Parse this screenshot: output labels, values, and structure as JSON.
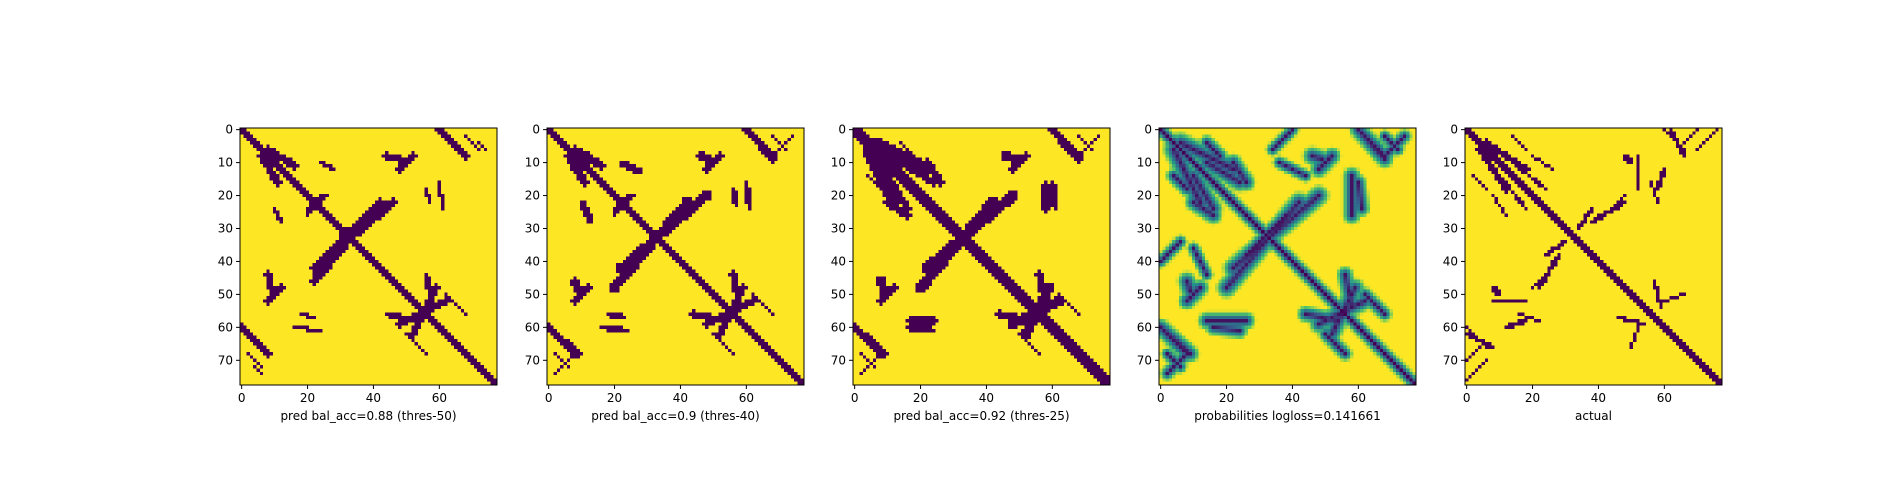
{
  "chart_data": [
    {
      "type": "heatmap",
      "name": "pred-50",
      "mode": "binary",
      "xlabel": "pred bal_acc=0.88 (thres-50)",
      "matrix_size": 78,
      "xticks": [
        0,
        20,
        40,
        60
      ],
      "yticks": [
        0,
        10,
        20,
        30,
        40,
        50,
        60,
        70
      ],
      "diagonal_halfwidth": 1.6,
      "arcs": [
        {
          "x0": 22,
          "y0": 42,
          "x1": 46,
          "y1": 22,
          "w": 1.3
        },
        {
          "x0": 8,
          "y0": 6,
          "x1": 16,
          "y1": 11,
          "w": 1.2
        },
        {
          "x0": 59,
          "y0": 48,
          "x1": 52,
          "y1": 62,
          "w": 1.1
        },
        {
          "x0": 60,
          "y0": 0,
          "x1": 68,
          "y1": 8,
          "w": 1.0
        },
        {
          "x0": 0,
          "y0": 60,
          "x1": 8,
          "y1": 68,
          "w": 0.9
        },
        {
          "x0": 68,
          "y0": 2,
          "x1": 72,
          "y1": 6,
          "w": 0.4
        },
        {
          "x0": 26,
          "y0": 38,
          "x1": 32,
          "y1": 30,
          "w": 0.5
        },
        {
          "x0": 20,
          "y0": 24,
          "x1": 26,
          "y1": 20,
          "w": 0.7
        },
        {
          "x0": 8,
          "y0": 52,
          "x1": 12,
          "y1": 48,
          "w": 1.0
        },
        {
          "x0": 24,
          "y0": 10,
          "x1": 28,
          "y1": 12,
          "w": 0.8
        },
        {
          "x0": 44,
          "y0": 8,
          "x1": 48,
          "y1": 9,
          "w": 1.2
        },
        {
          "x0": 56,
          "y0": 18,
          "x1": 57,
          "y1": 22,
          "w": 0.7
        },
        {
          "x0": 16,
          "y0": 60,
          "x1": 24,
          "y1": 61,
          "w": 0.6
        },
        {
          "x0": 44,
          "y0": 56,
          "x1": 54,
          "y1": 58,
          "w": 0.9
        },
        {
          "x0": 4,
          "y0": 72,
          "x1": 6,
          "y1": 74,
          "w": 0.4
        },
        {
          "x0": 62,
          "y0": 50,
          "x1": 68,
          "y1": 56,
          "w": 0.5
        }
      ]
    },
    {
      "type": "heatmap",
      "name": "pred-40",
      "mode": "binary",
      "xlabel": "pred bal_acc=0.9 (thres-40)",
      "matrix_size": 78,
      "xticks": [
        0,
        20,
        40,
        60
      ],
      "yticks": [
        0,
        10,
        20,
        30,
        40,
        50,
        60,
        70
      ],
      "diagonal_halfwidth": 1.8,
      "arcs": [
        {
          "x0": 22,
          "y0": 42,
          "x1": 48,
          "y1": 20,
          "w": 1.5
        },
        {
          "x0": 8,
          "y0": 6,
          "x1": 16,
          "y1": 11,
          "w": 1.3
        },
        {
          "x0": 59,
          "y0": 48,
          "x1": 52,
          "y1": 62,
          "w": 1.3
        },
        {
          "x0": 60,
          "y0": 0,
          "x1": 68,
          "y1": 8,
          "w": 1.2
        },
        {
          "x0": 0,
          "y0": 60,
          "x1": 9,
          "y1": 68,
          "w": 1.0
        },
        {
          "x0": 2,
          "y0": 74,
          "x1": 8,
          "y1": 68,
          "w": 0.5
        },
        {
          "x0": 26,
          "y0": 38,
          "x1": 34,
          "y1": 30,
          "w": 0.6
        },
        {
          "x0": 20,
          "y0": 24,
          "x1": 26,
          "y1": 20,
          "w": 0.8
        },
        {
          "x0": 8,
          "y0": 52,
          "x1": 12,
          "y1": 48,
          "w": 1.1
        },
        {
          "x0": 22,
          "y0": 10,
          "x1": 28,
          "y1": 13,
          "w": 0.9
        },
        {
          "x0": 46,
          "y0": 8,
          "x1": 49,
          "y1": 9,
          "w": 1.4
        },
        {
          "x0": 56,
          "y0": 18,
          "x1": 57,
          "y1": 23,
          "w": 0.9
        },
        {
          "x0": 16,
          "y0": 60,
          "x1": 24,
          "y1": 61,
          "w": 0.8
        },
        {
          "x0": 44,
          "y0": 56,
          "x1": 54,
          "y1": 58,
          "w": 1.0
        },
        {
          "x0": 62,
          "y0": 50,
          "x1": 68,
          "y1": 56,
          "w": 0.6
        },
        {
          "x0": 68,
          "y0": 2,
          "x1": 72,
          "y1": 6,
          "w": 0.4
        }
      ]
    },
    {
      "type": "heatmap",
      "name": "pred-25",
      "mode": "binary",
      "xlabel": "pred bal_acc=0.92 (thres-25)",
      "matrix_size": 78,
      "xticks": [
        0,
        20,
        40,
        60
      ],
      "yticks": [
        0,
        10,
        20,
        30,
        40,
        50,
        60,
        70
      ],
      "diagonal_halfwidth": 2.0,
      "arcs": [
        {
          "x0": 22,
          "y0": 42,
          "x1": 48,
          "y1": 20,
          "w": 1.7
        },
        {
          "x0": 6,
          "y0": 4,
          "x1": 22,
          "y1": 12,
          "w": 1.8
        },
        {
          "x0": 14,
          "y0": 10,
          "x1": 24,
          "y1": 16,
          "w": 1.2
        },
        {
          "x0": 59,
          "y0": 48,
          "x1": 52,
          "y1": 62,
          "w": 1.5
        },
        {
          "x0": 60,
          "y0": 0,
          "x1": 68,
          "y1": 8,
          "w": 1.3
        },
        {
          "x0": 0,
          "y0": 60,
          "x1": 9,
          "y1": 68,
          "w": 1.2
        },
        {
          "x0": 2,
          "y0": 74,
          "x1": 8,
          "y1": 68,
          "w": 0.6
        },
        {
          "x0": 26,
          "y0": 38,
          "x1": 34,
          "y1": 30,
          "w": 0.7
        },
        {
          "x0": 10,
          "y0": 22,
          "x1": 16,
          "y1": 26,
          "w": 1.2
        },
        {
          "x0": 8,
          "y0": 52,
          "x1": 12,
          "y1": 48,
          "w": 1.2
        },
        {
          "x0": 46,
          "y0": 8,
          "x1": 49,
          "y1": 9,
          "w": 1.5
        },
        {
          "x0": 58,
          "y0": 17,
          "x1": 58,
          "y1": 24,
          "w": 1.0
        },
        {
          "x0": 16,
          "y0": 60,
          "x1": 24,
          "y1": 61,
          "w": 0.9
        },
        {
          "x0": 44,
          "y0": 56,
          "x1": 54,
          "y1": 58,
          "w": 1.1
        },
        {
          "x0": 62,
          "y0": 50,
          "x1": 68,
          "y1": 56,
          "w": 0.7
        },
        {
          "x0": 68,
          "y0": 2,
          "x1": 72,
          "y1": 6,
          "w": 0.5
        },
        {
          "x0": 4,
          "y0": 14,
          "x1": 8,
          "y1": 18,
          "w": 0.6
        }
      ]
    },
    {
      "type": "heatmap",
      "name": "probabilities",
      "mode": "continuous",
      "xlabel": "probabilities logloss=0.141661",
      "matrix_size": 78,
      "xticks": [
        0,
        20,
        40,
        60
      ],
      "yticks": [
        0,
        10,
        20,
        30,
        40,
        50,
        60,
        70
      ],
      "diagonal_halfwidth": 2.2,
      "arcs": [
        {
          "x0": 22,
          "y0": 42,
          "x1": 48,
          "y1": 20,
          "w": 2.0
        },
        {
          "x0": 6,
          "y0": 4,
          "x1": 22,
          "y1": 12,
          "w": 2.2
        },
        {
          "x0": 14,
          "y0": 10,
          "x1": 24,
          "y1": 16,
          "w": 1.8
        },
        {
          "x0": 59,
          "y0": 48,
          "x1": 52,
          "y1": 62,
          "w": 1.8
        },
        {
          "x0": 60,
          "y0": 0,
          "x1": 68,
          "y1": 8,
          "w": 1.6
        },
        {
          "x0": 0,
          "y0": 60,
          "x1": 9,
          "y1": 68,
          "w": 1.6
        },
        {
          "x0": 2,
          "y0": 74,
          "x1": 8,
          "y1": 68,
          "w": 1.0
        },
        {
          "x0": 26,
          "y0": 38,
          "x1": 34,
          "y1": 30,
          "w": 1.1
        },
        {
          "x0": 10,
          "y0": 22,
          "x1": 16,
          "y1": 26,
          "w": 1.6
        },
        {
          "x0": 8,
          "y0": 52,
          "x1": 12,
          "y1": 48,
          "w": 1.6
        },
        {
          "x0": 46,
          "y0": 8,
          "x1": 49,
          "y1": 9,
          "w": 1.8
        },
        {
          "x0": 58,
          "y0": 14,
          "x1": 58,
          "y1": 26,
          "w": 1.6
        },
        {
          "x0": 16,
          "y0": 60,
          "x1": 24,
          "y1": 61,
          "w": 1.3
        },
        {
          "x0": 44,
          "y0": 56,
          "x1": 54,
          "y1": 58,
          "w": 1.4
        },
        {
          "x0": 62,
          "y0": 50,
          "x1": 68,
          "y1": 56,
          "w": 1.0
        },
        {
          "x0": 68,
          "y0": 2,
          "x1": 72,
          "y1": 6,
          "w": 0.8
        },
        {
          "x0": 4,
          "y0": 14,
          "x1": 8,
          "y1": 18,
          "w": 1.2
        },
        {
          "x0": 0,
          "y0": 40,
          "x1": 6,
          "y1": 34,
          "w": 0.8
        },
        {
          "x0": 36,
          "y0": 10,
          "x1": 44,
          "y1": 14,
          "w": 0.8
        }
      ]
    },
    {
      "type": "heatmap",
      "name": "actual",
      "mode": "binary",
      "xlabel": "actual",
      "matrix_size": 78,
      "xticks": [
        0,
        20,
        40,
        60
      ],
      "yticks": [
        0,
        10,
        20,
        30,
        40,
        50,
        60,
        70
      ],
      "diagonal_halfwidth": 1.5,
      "arcs": [
        {
          "x0": 24,
          "y0": 38,
          "x1": 30,
          "y1": 34,
          "w": 0.6
        },
        {
          "x0": 38,
          "y0": 28,
          "x1": 48,
          "y1": 22,
          "w": 0.8
        },
        {
          "x0": 6,
          "y0": 4,
          "x1": 18,
          "y1": 12,
          "w": 1.1
        },
        {
          "x0": 14,
          "y0": 10,
          "x1": 24,
          "y1": 18,
          "w": 0.6
        },
        {
          "x0": 60,
          "y0": 0,
          "x1": 66,
          "y1": 6,
          "w": 0.6
        },
        {
          "x0": 0,
          "y0": 62,
          "x1": 8,
          "y1": 66,
          "w": 0.6
        },
        {
          "x0": 0,
          "y0": 76,
          "x1": 6,
          "y1": 70,
          "w": 0.5
        },
        {
          "x0": 20,
          "y0": 8,
          "x1": 26,
          "y1": 12,
          "w": 0.4
        },
        {
          "x0": 8,
          "y0": 52,
          "x1": 18,
          "y1": 52,
          "w": 0.5
        },
        {
          "x0": 48,
          "y0": 8,
          "x1": 50,
          "y1": 10,
          "w": 0.9
        },
        {
          "x0": 56,
          "y0": 16,
          "x1": 58,
          "y1": 22,
          "w": 0.6
        },
        {
          "x0": 12,
          "y0": 60,
          "x1": 18,
          "y1": 58,
          "w": 0.7
        },
        {
          "x0": 46,
          "y0": 57,
          "x1": 54,
          "y1": 59,
          "w": 0.7
        },
        {
          "x0": 60,
          "y0": 52,
          "x1": 66,
          "y1": 50,
          "w": 0.5
        },
        {
          "x0": 20,
          "y0": 48,
          "x1": 24,
          "y1": 44,
          "w": 0.5
        },
        {
          "x0": 66,
          "y0": 4,
          "x1": 70,
          "y1": 0,
          "w": 0.4
        },
        {
          "x0": 2,
          "y0": 14,
          "x1": 6,
          "y1": 18,
          "w": 0.3
        }
      ]
    }
  ],
  "colors": {
    "low": "#440154",
    "high": "#fde725",
    "axis": "#000000"
  }
}
